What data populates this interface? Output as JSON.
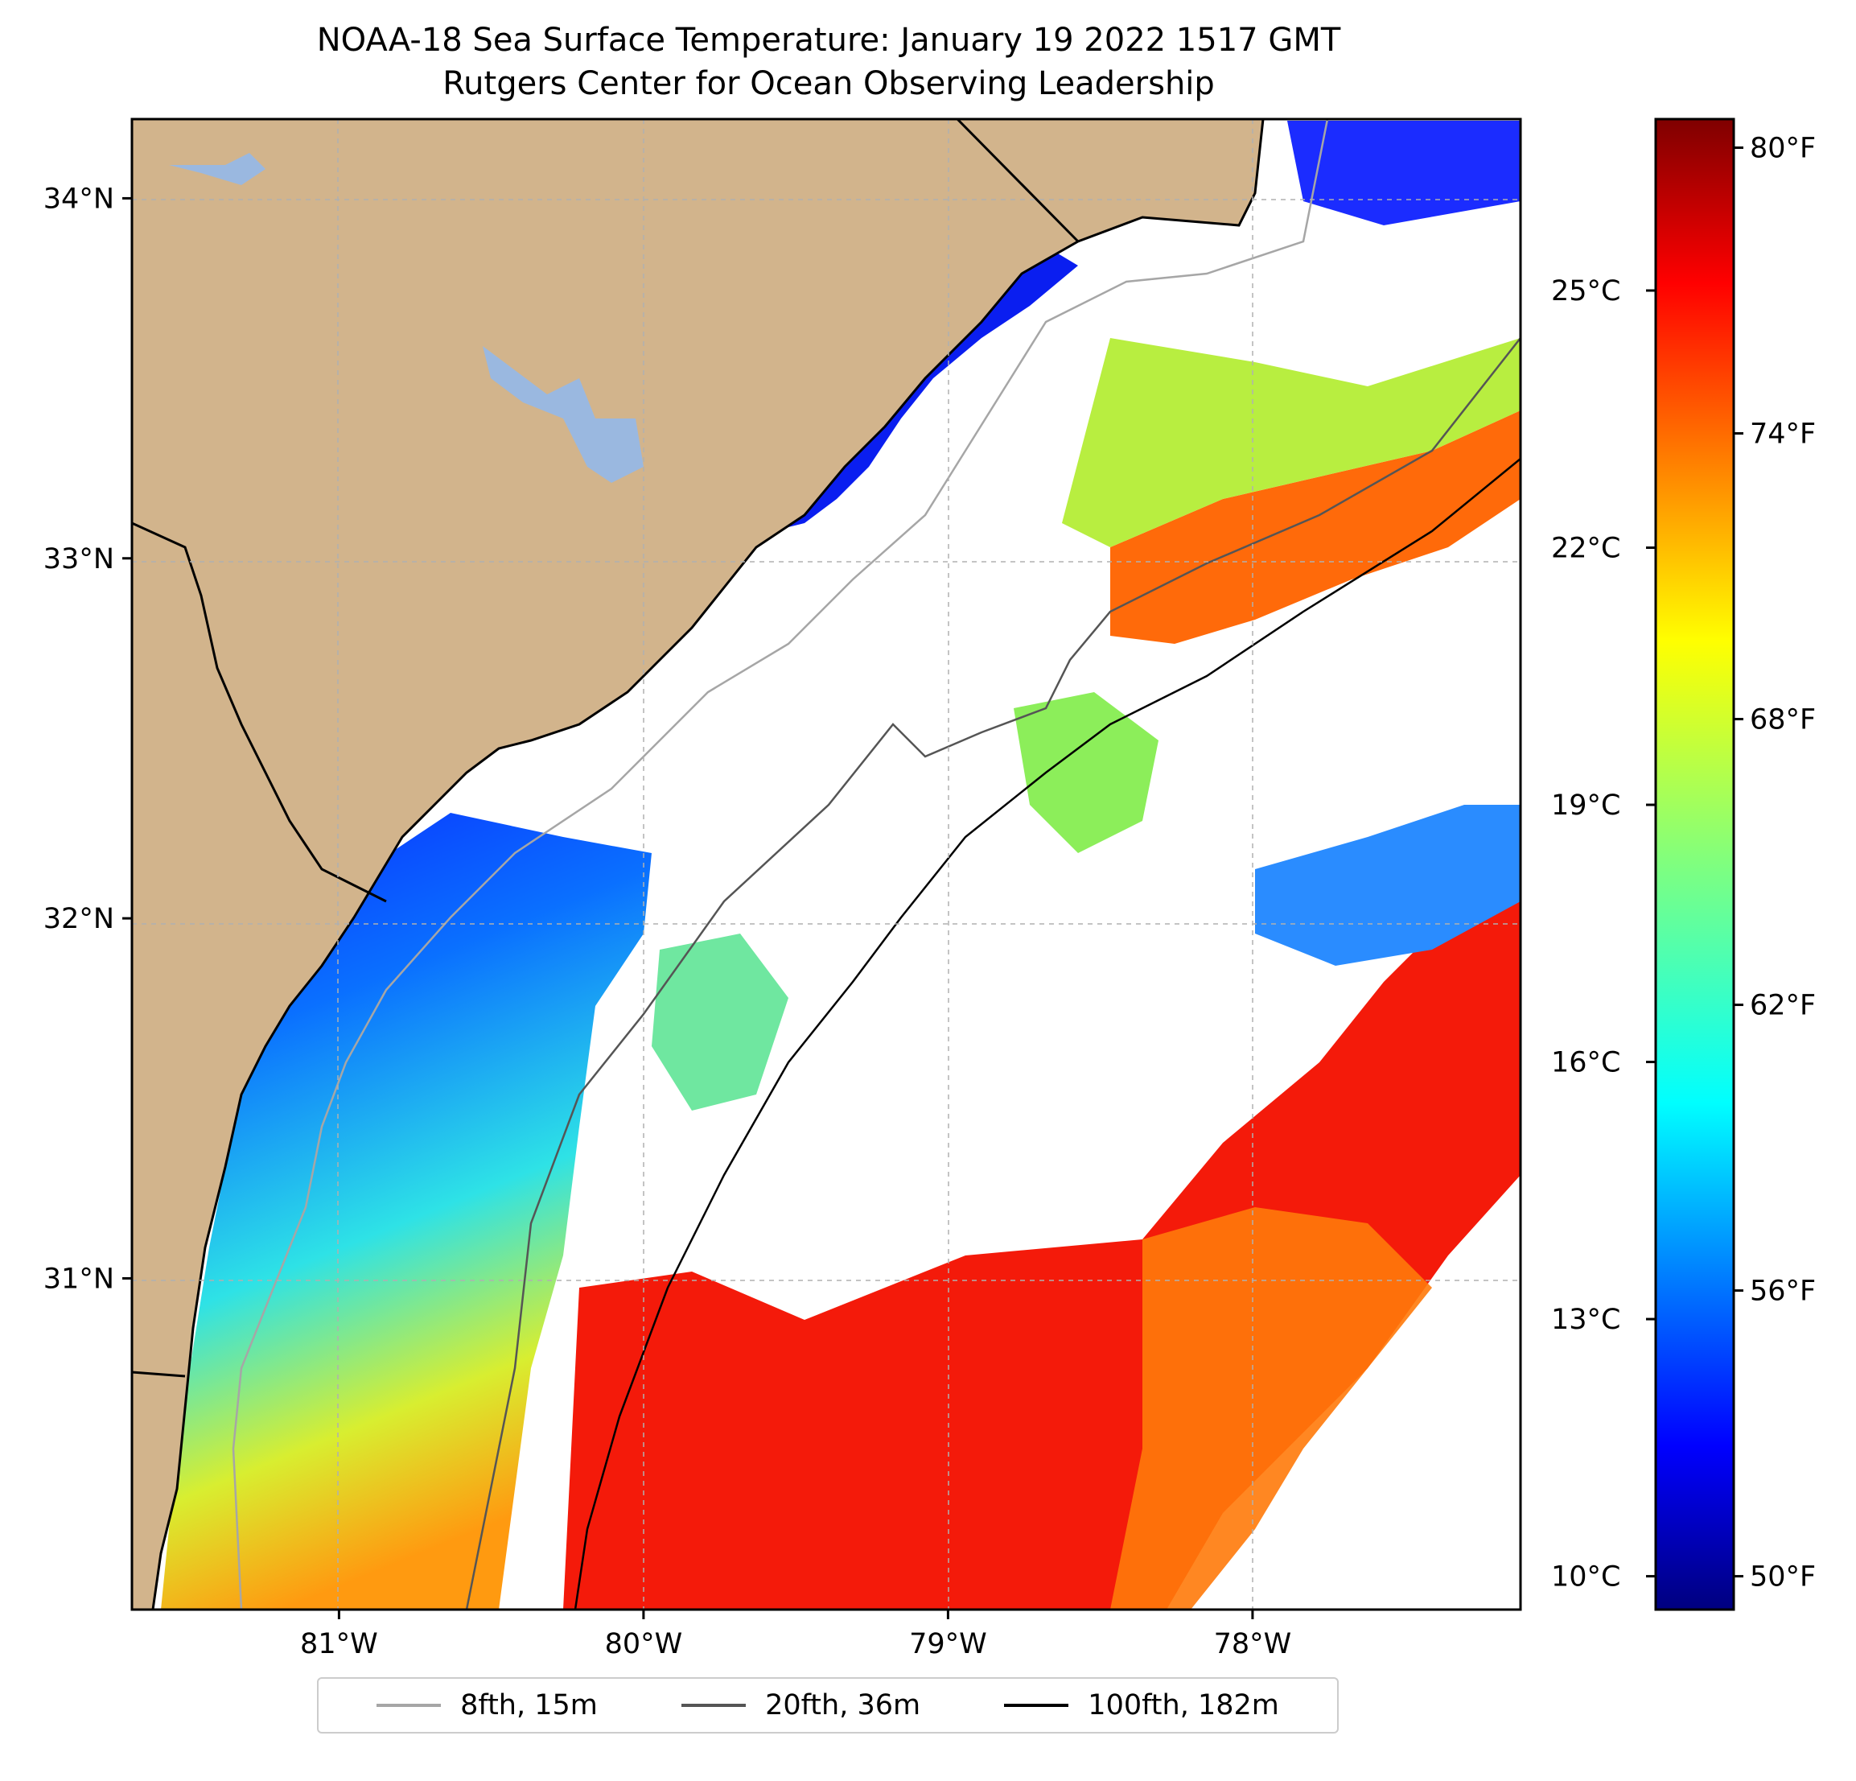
{
  "title": {
    "line1": "NOAA-18 Sea Surface Temperature: January 19 2022 1517 GMT",
    "line2": "Rutgers Center for Ocean Observing Leadership"
  },
  "map": {
    "extent": {
      "lon_min": -81.68,
      "lon_max": -77.12,
      "lat_min": 30.08,
      "lat_max": 34.22
    },
    "x_ticks": [
      {
        "value": -81,
        "label": "81°W"
      },
      {
        "value": -80,
        "label": "80°W"
      },
      {
        "value": -79,
        "label": "79°W"
      },
      {
        "value": -78,
        "label": "78°W"
      }
    ],
    "y_ticks": [
      {
        "value": 34,
        "label": "34°N"
      },
      {
        "value": 33,
        "label": "33°N"
      },
      {
        "value": 32,
        "label": "32°N"
      },
      {
        "value": 31,
        "label": "31°N"
      }
    ],
    "gridlines": true,
    "land_color": "#d2b48c",
    "lake_color": "#9ab8e0"
  },
  "colorbar": {
    "colormap": "jet",
    "celsius_ticks": [
      {
        "value": 10,
        "label": "10°C"
      },
      {
        "value": 13,
        "label": "13°C"
      },
      {
        "value": 16,
        "label": "16°C"
      },
      {
        "value": 19,
        "label": "19°C"
      },
      {
        "value": 22,
        "label": "22°C"
      },
      {
        "value": 25,
        "label": "25°C"
      }
    ],
    "fahrenheit_ticks": [
      {
        "value": 50,
        "label": "50°F"
      },
      {
        "value": 56,
        "label": "56°F"
      },
      {
        "value": 62,
        "label": "62°F"
      },
      {
        "value": 68,
        "label": "68°F"
      },
      {
        "value": 74,
        "label": "74°F"
      },
      {
        "value": 80,
        "label": "80°F"
      }
    ],
    "range_f": [
      49.3,
      80.6
    ]
  },
  "legend": {
    "placement": "bottom-center",
    "items": [
      {
        "label": "8fth, 15m",
        "color": "#a6a6a6"
      },
      {
        "label": "20fth, 36m",
        "color": "#555555"
      },
      {
        "label": "100fth, 182m",
        "color": "#000000"
      }
    ]
  }
}
